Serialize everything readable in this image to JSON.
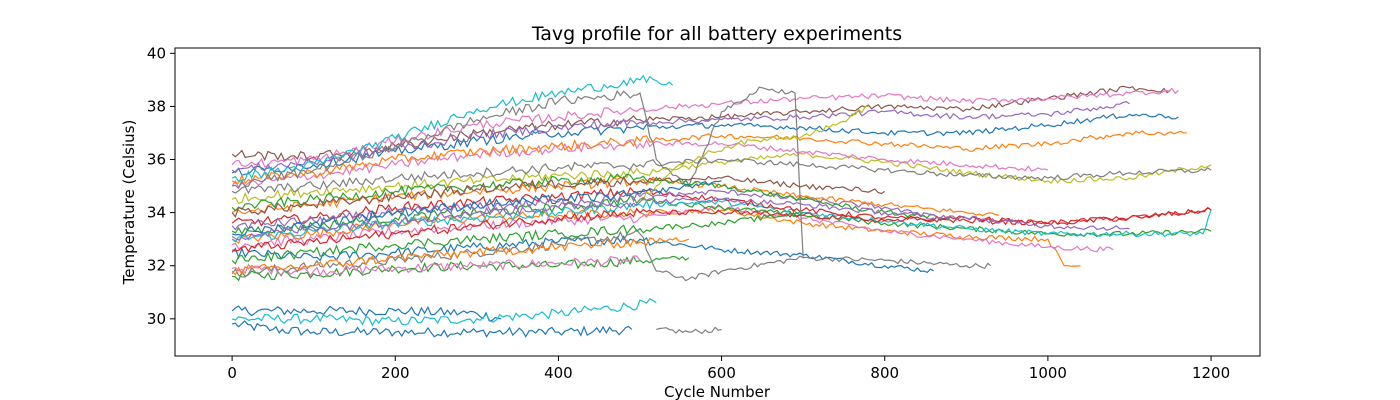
{
  "chart_data": {
    "type": "line",
    "title": "Tavg profile for all battery experiments",
    "xlabel": "Cycle Number",
    "ylabel": "Temperature (Celsius)",
    "xlim": [
      -70,
      1260
    ],
    "ylim": [
      28.6,
      40.2
    ],
    "x_ticks": [
      0,
      200,
      400,
      600,
      800,
      1000,
      1200
    ],
    "y_ticks": [
      30,
      32,
      34,
      36,
      38,
      40
    ],
    "x_tick_labels": [
      "0",
      "200",
      "400",
      "600",
      "800",
      "1000",
      "1200"
    ],
    "y_tick_labels": [
      "30",
      "32",
      "34",
      "36",
      "38",
      "40"
    ],
    "grid": false,
    "legend": "none",
    "palette": [
      "#1f77b4",
      "#ff7f0e",
      "#2ca02c",
      "#d62728",
      "#9467bd",
      "#8c564b",
      "#e377c2",
      "#7f7f7f",
      "#bcbd22",
      "#17becf"
    ],
    "series": [
      {
        "color": "#1f77b4",
        "x": [
          0,
          50,
          100,
          150,
          200,
          300,
          400,
          490
        ],
        "y": [
          29.8,
          29.6,
          29.5,
          29.5,
          29.5,
          29.5,
          29.5,
          29.6
        ]
      },
      {
        "color": "#1f77b4",
        "x": [
          0,
          100,
          200,
          300,
          330
        ],
        "y": [
          30.3,
          30.3,
          30.3,
          30.2,
          30.0
        ]
      },
      {
        "color": "#17becf",
        "x": [
          0,
          100,
          200,
          300,
          400,
          520
        ],
        "y": [
          30.0,
          30.0,
          29.9,
          30.0,
          30.2,
          30.6
        ]
      },
      {
        "color": "#7f7f7f",
        "x": [
          520,
          560,
          600
        ],
        "y": [
          29.6,
          29.5,
          29.6
        ]
      },
      {
        "color": "#2ca02c",
        "x": [
          0,
          100,
          200,
          300,
          400,
          500,
          560
        ],
        "y": [
          31.6,
          31.7,
          31.9,
          32.0,
          32.0,
          32.2,
          32.3
        ]
      },
      {
        "color": "#e377c2",
        "x": [
          0,
          100,
          200,
          300,
          400,
          500
        ],
        "y": [
          31.9,
          31.8,
          31.9,
          32.0,
          32.1,
          32.2
        ]
      },
      {
        "color": "#1f77b4",
        "x": [
          0,
          100,
          200,
          300,
          400,
          500,
          600,
          700,
          800,
          860
        ],
        "y": [
          32.5,
          32.3,
          32.5,
          32.7,
          32.9,
          33.0,
          32.6,
          32.4,
          32.0,
          31.8
        ]
      },
      {
        "color": "#7f7f7f",
        "x": [
          0,
          100,
          200,
          300,
          400,
          500,
          520,
          560,
          600,
          700,
          800,
          900,
          930
        ],
        "y": [
          31.7,
          32.0,
          32.2,
          32.5,
          32.8,
          33.2,
          31.8,
          31.5,
          31.8,
          32.3,
          32.2,
          32.0,
          32.0
        ]
      },
      {
        "color": "#ff7f0e",
        "x": [
          0,
          100,
          200,
          300,
          400,
          500,
          600,
          700,
          800,
          900,
          1000,
          1020,
          1040
        ],
        "y": [
          33.0,
          33.2,
          33.6,
          33.8,
          33.9,
          34.0,
          34.1,
          33.6,
          33.3,
          33.1,
          33.0,
          32.0,
          32.0
        ]
      },
      {
        "color": "#e377c2",
        "x": [
          0,
          100,
          200,
          300,
          400,
          500,
          600,
          700,
          800,
          900,
          1000,
          1080
        ],
        "y": [
          32.8,
          33.0,
          33.3,
          33.5,
          33.7,
          33.8,
          34.2,
          33.8,
          33.3,
          33.0,
          32.7,
          32.6
        ]
      },
      {
        "color": "#2ca02c",
        "x": [
          0,
          100,
          200,
          300,
          400,
          500,
          600,
          700,
          800,
          900,
          1000,
          1100,
          1200
        ],
        "y": [
          33.3,
          33.5,
          33.8,
          34.0,
          34.2,
          34.5,
          34.2,
          33.9,
          33.6,
          33.4,
          33.2,
          33.2,
          33.3
        ]
      },
      {
        "color": "#17becf",
        "x": [
          0,
          100,
          200,
          300,
          400,
          500,
          600,
          700,
          800,
          900,
          1000,
          1100,
          1190,
          1200
        ],
        "y": [
          33.0,
          33.3,
          33.6,
          33.8,
          34.0,
          34.3,
          34.4,
          34.0,
          33.7,
          33.4,
          33.2,
          33.2,
          33.2,
          34.1
        ]
      },
      {
        "color": "#d62728",
        "x": [
          0,
          100,
          200,
          300,
          400,
          500,
          600,
          700,
          800,
          900,
          1000,
          1100,
          1200
        ],
        "y": [
          33.6,
          33.8,
          34.2,
          34.4,
          34.6,
          34.8,
          34.5,
          34.1,
          33.8,
          33.7,
          33.6,
          33.8,
          34.1
        ]
      },
      {
        "color": "#9467bd",
        "x": [
          0,
          100,
          200,
          300,
          400,
          500,
          600,
          700,
          800,
          860
        ],
        "y": [
          33.5,
          33.7,
          34.0,
          34.2,
          34.4,
          34.6,
          34.8,
          34.5,
          34.2,
          33.8
        ]
      },
      {
        "color": "#ff7f0e",
        "x": [
          0,
          100,
          200,
          300,
          400,
          500,
          600,
          700,
          800,
          900,
          940
        ],
        "y": [
          34.0,
          34.3,
          34.6,
          34.8,
          35.0,
          35.2,
          35.0,
          34.6,
          34.3,
          34.0,
          33.9
        ]
      },
      {
        "color": "#bcbd22",
        "x": [
          0,
          100,
          200,
          300,
          400,
          500,
          600,
          700,
          800,
          900,
          1000,
          1100,
          1200
        ],
        "y": [
          34.5,
          34.8,
          35.0,
          35.2,
          35.4,
          35.5,
          35.9,
          36.2,
          35.9,
          35.5,
          35.2,
          35.3,
          35.8
        ]
      },
      {
        "color": "#7f7f7f",
        "x": [
          0,
          100,
          200,
          300,
          400,
          500,
          600,
          700,
          800,
          900,
          1000,
          1100,
          1200
        ],
        "y": [
          34.8,
          35.0,
          35.3,
          35.5,
          35.7,
          35.8,
          36.0,
          35.8,
          35.6,
          35.4,
          35.3,
          35.5,
          35.6
        ]
      },
      {
        "color": "#2ca02c",
        "x": [
          0,
          100,
          200,
          300,
          400,
          500,
          600,
          700,
          800,
          880
        ],
        "y": [
          34.2,
          34.5,
          34.8,
          35.0,
          35.2,
          35.3,
          35.0,
          34.5,
          34.0,
          33.8
        ]
      },
      {
        "color": "#e377c2",
        "x": [
          0,
          100,
          200,
          300,
          400,
          500,
          600,
          700,
          800,
          900,
          1000
        ],
        "y": [
          35.0,
          35.4,
          35.8,
          36.2,
          36.4,
          36.6,
          36.6,
          36.3,
          36.0,
          35.8,
          35.6
        ]
      },
      {
        "color": "#1f77b4",
        "x": [
          0,
          100,
          200,
          300,
          400,
          500,
          600,
          700,
          800,
          900,
          1000,
          1100,
          1160
        ],
        "y": [
          35.5,
          35.8,
          36.3,
          36.7,
          37.0,
          37.2,
          37.3,
          37.2,
          37.0,
          37.0,
          37.3,
          37.7,
          37.6
        ]
      },
      {
        "color": "#ff7f0e",
        "x": [
          0,
          100,
          200,
          300,
          400,
          500,
          600,
          700,
          800,
          900,
          1000,
          1100,
          1170
        ],
        "y": [
          35.2,
          35.5,
          36.0,
          36.3,
          36.5,
          36.7,
          36.9,
          36.8,
          36.6,
          36.4,
          36.6,
          37.0,
          37.0
        ]
      },
      {
        "color": "#8c564b",
        "x": [
          0,
          100,
          200,
          300,
          400,
          500,
          600,
          700,
          800,
          900,
          1000,
          1100,
          1150
        ],
        "y": [
          36.2,
          36.1,
          36.5,
          37.0,
          37.3,
          37.5,
          37.6,
          37.8,
          38.0,
          37.9,
          38.3,
          38.7,
          38.6
        ]
      },
      {
        "color": "#e377c2",
        "x": [
          0,
          100,
          200,
          300,
          400,
          500,
          600,
          700,
          800,
          900,
          1000,
          1100,
          1160
        ],
        "y": [
          35.8,
          36.0,
          36.7,
          37.3,
          37.6,
          37.9,
          38.1,
          38.3,
          38.4,
          38.2,
          38.3,
          38.5,
          38.6
        ]
      },
      {
        "color": "#9467bd",
        "x": [
          0,
          100,
          200,
          300,
          400,
          500,
          600,
          700,
          800,
          900,
          1000,
          1100
        ],
        "y": [
          35.6,
          35.9,
          36.4,
          36.9,
          37.2,
          37.4,
          37.5,
          37.6,
          37.8,
          37.6,
          37.7,
          38.1
        ]
      },
      {
        "color": "#17becf",
        "x": [
          0,
          100,
          200,
          300,
          400,
          500,
          540
        ],
        "y": [
          35.3,
          35.8,
          36.8,
          37.9,
          38.5,
          39.0,
          38.8
        ]
      },
      {
        "color": "#7f7f7f",
        "x": [
          0,
          100,
          200,
          300,
          400,
          500,
          520,
          560,
          600,
          650,
          690,
          700
        ],
        "y": [
          35.0,
          35.6,
          36.5,
          37.5,
          38.2,
          38.5,
          36.0,
          35.0,
          37.8,
          38.7,
          38.5,
          32.3
        ]
      },
      {
        "color": "#bcbd22",
        "x": [
          500,
          540,
          580,
          620,
          660,
          700,
          740,
          780
        ],
        "y": [
          34.5,
          35.6,
          36.2,
          36.6,
          36.8,
          36.9,
          37.3,
          38.0
        ]
      },
      {
        "color": "#d62728",
        "x": [
          0,
          100,
          200,
          300,
          400,
          500,
          600,
          700,
          800,
          900,
          1000,
          1100,
          1200
        ],
        "y": [
          32.6,
          32.9,
          33.2,
          33.5,
          33.8,
          34.0,
          34.0,
          33.9,
          33.7,
          33.8,
          33.6,
          33.8,
          34.1
        ]
      },
      {
        "color": "#2ca02c",
        "x": [
          0,
          100,
          200,
          300,
          400,
          500,
          600,
          700
        ],
        "y": [
          32.2,
          32.5,
          32.8,
          33.0,
          33.2,
          33.4,
          33.6,
          34.0
        ]
      },
      {
        "color": "#1f77b4",
        "x": [
          0,
          100,
          200,
          300,
          400,
          500,
          600
        ],
        "y": [
          33.2,
          33.6,
          34.0,
          34.3,
          34.5,
          34.7,
          35.2
        ]
      },
      {
        "color": "#8c564b",
        "x": [
          0,
          100,
          200,
          300,
          400,
          500,
          600,
          700,
          800
        ],
        "y": [
          34.0,
          34.3,
          34.6,
          34.9,
          35.1,
          35.2,
          35.3,
          35.0,
          34.8
        ]
      },
      {
        "color": "#ff7f0e",
        "x": [
          0,
          100,
          200,
          300,
          400,
          500,
          560
        ],
        "y": [
          31.8,
          32.0,
          32.3,
          32.5,
          32.7,
          32.9,
          33.0
        ]
      },
      {
        "color": "#9467bd",
        "x": [
          0,
          100,
          200,
          300,
          400,
          500,
          600,
          700,
          800,
          900,
          1000,
          1100
        ],
        "y": [
          33.1,
          33.4,
          33.7,
          34.0,
          34.2,
          34.4,
          34.5,
          34.3,
          34.0,
          33.8,
          33.5,
          33.4
        ]
      }
    ]
  }
}
